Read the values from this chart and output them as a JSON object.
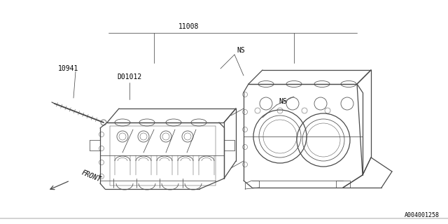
{
  "bg_color": "#ffffff",
  "line_color": "#4a4a4a",
  "text_color": "#000000",
  "title_label": "11008",
  "label_10941": "10941",
  "label_D01012": "D01012",
  "label_NS1": "NS",
  "label_NS2": "NS",
  "label_FRONT": "FRONT",
  "label_code": "A004001258",
  "fig_width": 6.4,
  "fig_height": 3.2,
  "dpi": 100,
  "lw_main": 0.9,
  "lw_detail": 0.55,
  "lw_thin": 0.35,
  "font_size_label": 7.0,
  "font_size_code": 6.0
}
